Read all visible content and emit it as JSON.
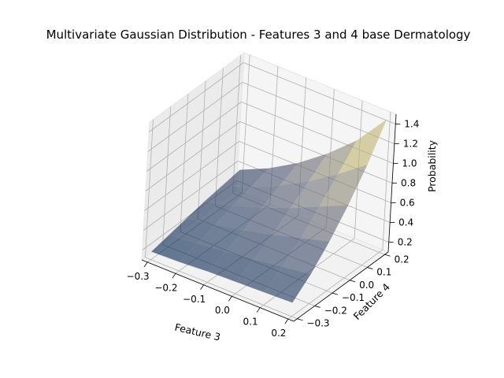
{
  "chart_data": {
    "type": "surface",
    "title": "Multivariate Gaussian Distribution - Features 3 and 4 base Dermatology",
    "xlabel": "Feature 3",
    "ylabel": "Feature 4",
    "zlabel": "Probability",
    "x": [
      -0.3,
      -0.2,
      -0.1,
      0.0,
      0.1,
      0.2
    ],
    "y": [
      -0.3,
      -0.2,
      -0.1,
      0.0,
      0.1,
      0.2
    ],
    "xlim": [
      -0.32,
      0.22
    ],
    "ylim": [
      -0.32,
      0.22
    ],
    "zlim": [
      0.1,
      1.5
    ],
    "xticks": [
      "−0.3",
      "−0.2",
      "−0.1",
      "0.0",
      "0.1",
      "0.2"
    ],
    "yticks": [
      "−0.3",
      "−0.2",
      "−0.1",
      "0.0",
      "0.1",
      "0.2"
    ],
    "zticks": [
      "0.2",
      "0.4",
      "0.6",
      "0.8",
      "1.0",
      "1.2",
      "1.4"
    ],
    "zticks_values": [
      0.2,
      0.4,
      0.6,
      0.8,
      1.0,
      1.2,
      1.4
    ],
    "z": [
      [
        0.18,
        0.19,
        0.21,
        0.22,
        0.23,
        0.24
      ],
      [
        0.22,
        0.25,
        0.28,
        0.32,
        0.36,
        0.4
      ],
      [
        0.26,
        0.31,
        0.37,
        0.44,
        0.52,
        0.6
      ],
      [
        0.3,
        0.37,
        0.47,
        0.58,
        0.71,
        0.84
      ],
      [
        0.33,
        0.43,
        0.56,
        0.72,
        0.91,
        1.12
      ],
      [
        0.36,
        0.49,
        0.66,
        0.87,
        1.12,
        1.45
      ]
    ],
    "colormap": "cividis",
    "alpha": 0.6,
    "grid": true
  }
}
